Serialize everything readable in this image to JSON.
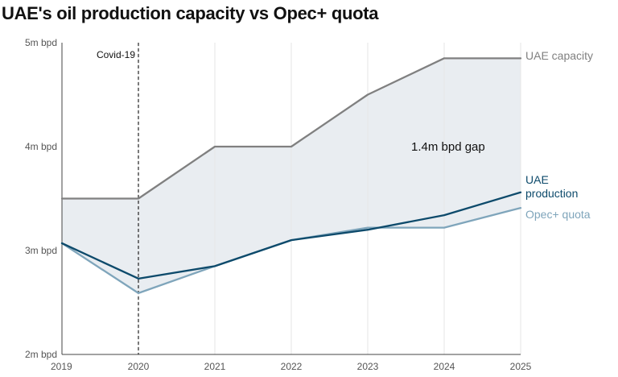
{
  "chart_data": {
    "type": "line",
    "title": "UAE's oil production capacity vs Opec+ quota",
    "subtitle": "",
    "xlabel": "",
    "ylabel": "",
    "x": [
      "2019",
      "2020",
      "2021",
      "2022",
      "2023",
      "2024",
      "2025"
    ],
    "xlim": [
      2019,
      2025
    ],
    "ylim": [
      2,
      5
    ],
    "y_ticks": [
      {
        "value": 5,
        "label": "5m bpd"
      },
      {
        "value": 4,
        "label": "4m bpd"
      },
      {
        "value": 3,
        "label": "3m bpd"
      },
      {
        "value": 2,
        "label": "2m bpd"
      }
    ],
    "grid": "vertical",
    "legend": "direct labels at right",
    "series": [
      {
        "name": "UAE capacity",
        "label_lines": [
          "UAE capacity"
        ],
        "color": "#808080",
        "x": [
          2019,
          2020,
          2021,
          2022,
          2023,
          2024,
          2025
        ],
        "values": [
          3.5,
          3.5,
          4.0,
          4.0,
          4.5,
          4.85,
          4.85
        ]
      },
      {
        "name": "UAE production",
        "label_lines": [
          "UAE",
          "production"
        ],
        "color": "#0d4a6b",
        "x": [
          2019,
          2020,
          2021,
          2022,
          2023,
          2024,
          2025
        ],
        "values": [
          3.07,
          2.73,
          2.85,
          3.1,
          3.2,
          3.34,
          3.56
        ]
      },
      {
        "name": "Opec+ quota",
        "label_lines": [
          "Opec+ quota"
        ],
        "color": "#7fa5bb",
        "x": [
          2019,
          2020,
          2021,
          2022,
          2023,
          2024,
          2025
        ],
        "values": [
          3.07,
          2.59,
          2.85,
          3.1,
          3.22,
          3.22,
          3.41
        ]
      }
    ],
    "fill_between": {
      "upper": "UAE capacity",
      "lower": "Opec+ quota",
      "color": "#e9edf1"
    },
    "annotations": [
      {
        "text": "Covid-19",
        "x": 2020,
        "type": "dashed-vertical-line"
      },
      {
        "text": "1.4m bpd gap",
        "x": 2024,
        "y": 4.0
      }
    ]
  }
}
